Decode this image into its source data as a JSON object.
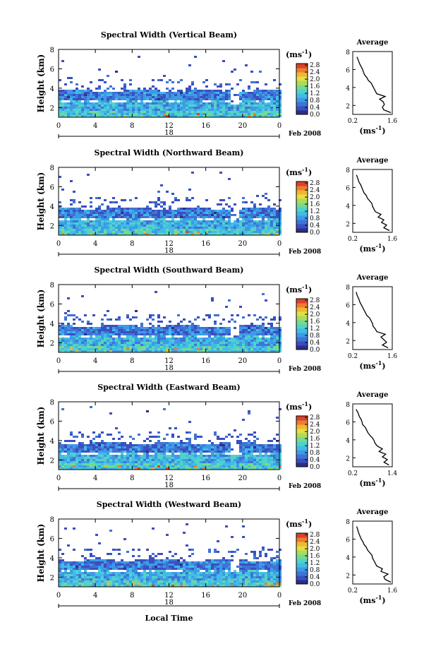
{
  "colors": {
    "colorbar": [
      "#2b2f86",
      "#3a4fc0",
      "#3f73d6",
      "#3d9be6",
      "#3fbde8",
      "#52d3c6",
      "#79d98f",
      "#a9dd5c",
      "#e3e03f",
      "#f2b536",
      "#ee7d2e",
      "#d8432a"
    ]
  },
  "shared": {
    "xlabel": "Local Time",
    "date_label": "Feb 2008",
    "day_label": "18",
    "ylabel": "Height (km)",
    "x_ticks": [
      "0",
      "4",
      "8",
      "12",
      "16",
      "20",
      "0"
    ],
    "y_ticks": [
      "2",
      "4",
      "6",
      "8"
    ],
    "unit_label": "(ms",
    "unit_sup": "-1",
    "unit_close": ")",
    "avg_title": "Average",
    "avg_xlabel": "(ms",
    "avg_xlabel_sup": "-1",
    "avg_xlabel_close": ")"
  },
  "chart_data": [
    {
      "type": "heatmap",
      "title": "Spectral Width (Vertical Beam)",
      "colorbar_ticks": [
        "0.0",
        "0.4",
        "0.8",
        "1.2",
        "1.6",
        "2.0",
        "2.4",
        "2.8"
      ],
      "xlim": [
        0,
        24
      ],
      "ylim": [
        1,
        8
      ],
      "average_profile": {
        "xlim": [
          0.2,
          1.6
        ],
        "x_ticks": [
          "0.2",
          "1.6"
        ],
        "height": [
          1.2,
          1.5,
          1.8,
          2.1,
          2.4,
          2.7,
          3.0,
          3.3,
          3.6,
          3.9,
          4.2,
          4.5,
          4.8,
          5.1,
          5.4,
          5.7,
          6.0,
          6.3,
          6.6,
          7.0,
          7.4
        ],
        "width": [
          1.55,
          1.3,
          1.25,
          1.32,
          1.28,
          1.15,
          1.35,
          1.05,
          1.0,
          0.95,
          0.9,
          0.85,
          0.75,
          0.7,
          0.62,
          0.58,
          0.55,
          0.5,
          0.45,
          0.4,
          0.35
        ]
      }
    },
    {
      "type": "heatmap",
      "title": "Spectral Width (Northward Beam)",
      "colorbar_ticks": [
        "0.0",
        "0.4",
        "0.8",
        "1.2",
        "1.6",
        "2.0",
        "2.4",
        "2.8"
      ],
      "xlim": [
        0,
        24
      ],
      "ylim": [
        1,
        8
      ],
      "average_profile": {
        "xlim": [
          0.2,
          1.6
        ],
        "x_ticks": [
          "0.2",
          "1.6"
        ],
        "height": [
          1.2,
          1.5,
          1.8,
          2.1,
          2.4,
          2.7,
          3.0,
          3.3,
          3.6,
          3.9,
          4.2,
          4.5,
          4.8,
          5.1,
          5.4,
          5.7,
          6.0,
          6.3,
          6.6,
          7.0,
          7.4
        ],
        "width": [
          1.5,
          1.3,
          1.4,
          1.22,
          1.3,
          1.1,
          1.2,
          1.0,
          0.95,
          0.9,
          0.88,
          0.8,
          0.72,
          0.68,
          0.6,
          0.56,
          0.52,
          0.48,
          0.42,
          0.38,
          0.33
        ]
      }
    },
    {
      "type": "heatmap",
      "title": "Spectral Width (Southward Beam)",
      "colorbar_ticks": [
        "0.0",
        "0.4",
        "0.8",
        "1.2",
        "1.6",
        "2.0",
        "2.4",
        "2.8"
      ],
      "xlim": [
        0,
        24
      ],
      "ylim": [
        1,
        8
      ],
      "average_profile": {
        "xlim": [
          0.2,
          1.6
        ],
        "x_ticks": [
          "0.2",
          "1.6"
        ],
        "height": [
          1.2,
          1.5,
          1.8,
          2.1,
          2.4,
          2.7,
          3.0,
          3.3,
          3.6,
          3.9,
          4.2,
          4.5,
          4.8,
          5.1,
          5.4,
          5.7,
          6.0,
          6.3,
          6.6,
          7.0,
          7.4
        ],
        "width": [
          1.45,
          1.25,
          1.4,
          1.3,
          1.2,
          1.35,
          1.05,
          1.0,
          0.92,
          0.9,
          0.85,
          0.8,
          0.7,
          0.65,
          0.6,
          0.55,
          0.5,
          0.45,
          0.42,
          0.36,
          0.32
        ]
      }
    },
    {
      "type": "heatmap",
      "title": "Spectral Width (Eastward Beam)",
      "colorbar_ticks": [
        "0.0",
        "0.4",
        "0.8",
        "1.2",
        "1.6",
        "2.0",
        "2.4",
        "2.8"
      ],
      "xlim": [
        0,
        24
      ],
      "ylim": [
        1,
        8
      ],
      "average_profile": {
        "xlim": [
          0.2,
          1.4
        ],
        "x_ticks": [
          "0.2",
          "1.4"
        ],
        "height": [
          1.2,
          1.5,
          1.8,
          2.1,
          2.4,
          2.7,
          3.0,
          3.3,
          3.6,
          3.9,
          4.2,
          4.5,
          4.8,
          5.1,
          5.4,
          5.7,
          6.0,
          6.3,
          6.6,
          7.0,
          7.4
        ],
        "width": [
          1.3,
          1.15,
          1.25,
          1.1,
          1.2,
          1.0,
          1.1,
          0.95,
          0.88,
          0.85,
          0.8,
          0.72,
          0.66,
          0.62,
          0.58,
          0.5,
          0.48,
          0.45,
          0.4,
          0.36,
          0.3
        ]
      }
    },
    {
      "type": "heatmap",
      "title": "Spectral Width (Westward Beam)",
      "colorbar_ticks": [
        "0.0",
        "0.4",
        "0.8",
        "1.2",
        "1.6",
        "2.0",
        "2.4",
        "2.8"
      ],
      "xlim": [
        0,
        24
      ],
      "ylim": [
        1,
        8
      ],
      "average_profile": {
        "xlim": [
          0.2,
          1.6
        ],
        "x_ticks": [
          "0.2",
          "1.6"
        ],
        "height": [
          1.2,
          1.5,
          1.8,
          2.1,
          2.4,
          2.7,
          3.0,
          3.3,
          3.6,
          3.9,
          4.2,
          4.5,
          4.8,
          5.1,
          5.4,
          5.7,
          6.0,
          6.3,
          6.6,
          7.0,
          7.4
        ],
        "width": [
          1.55,
          1.35,
          1.3,
          1.45,
          1.2,
          1.25,
          1.05,
          1.0,
          0.95,
          0.9,
          0.88,
          0.8,
          0.72,
          0.68,
          0.6,
          0.56,
          0.5,
          0.46,
          0.42,
          0.38,
          0.34
        ]
      }
    }
  ]
}
